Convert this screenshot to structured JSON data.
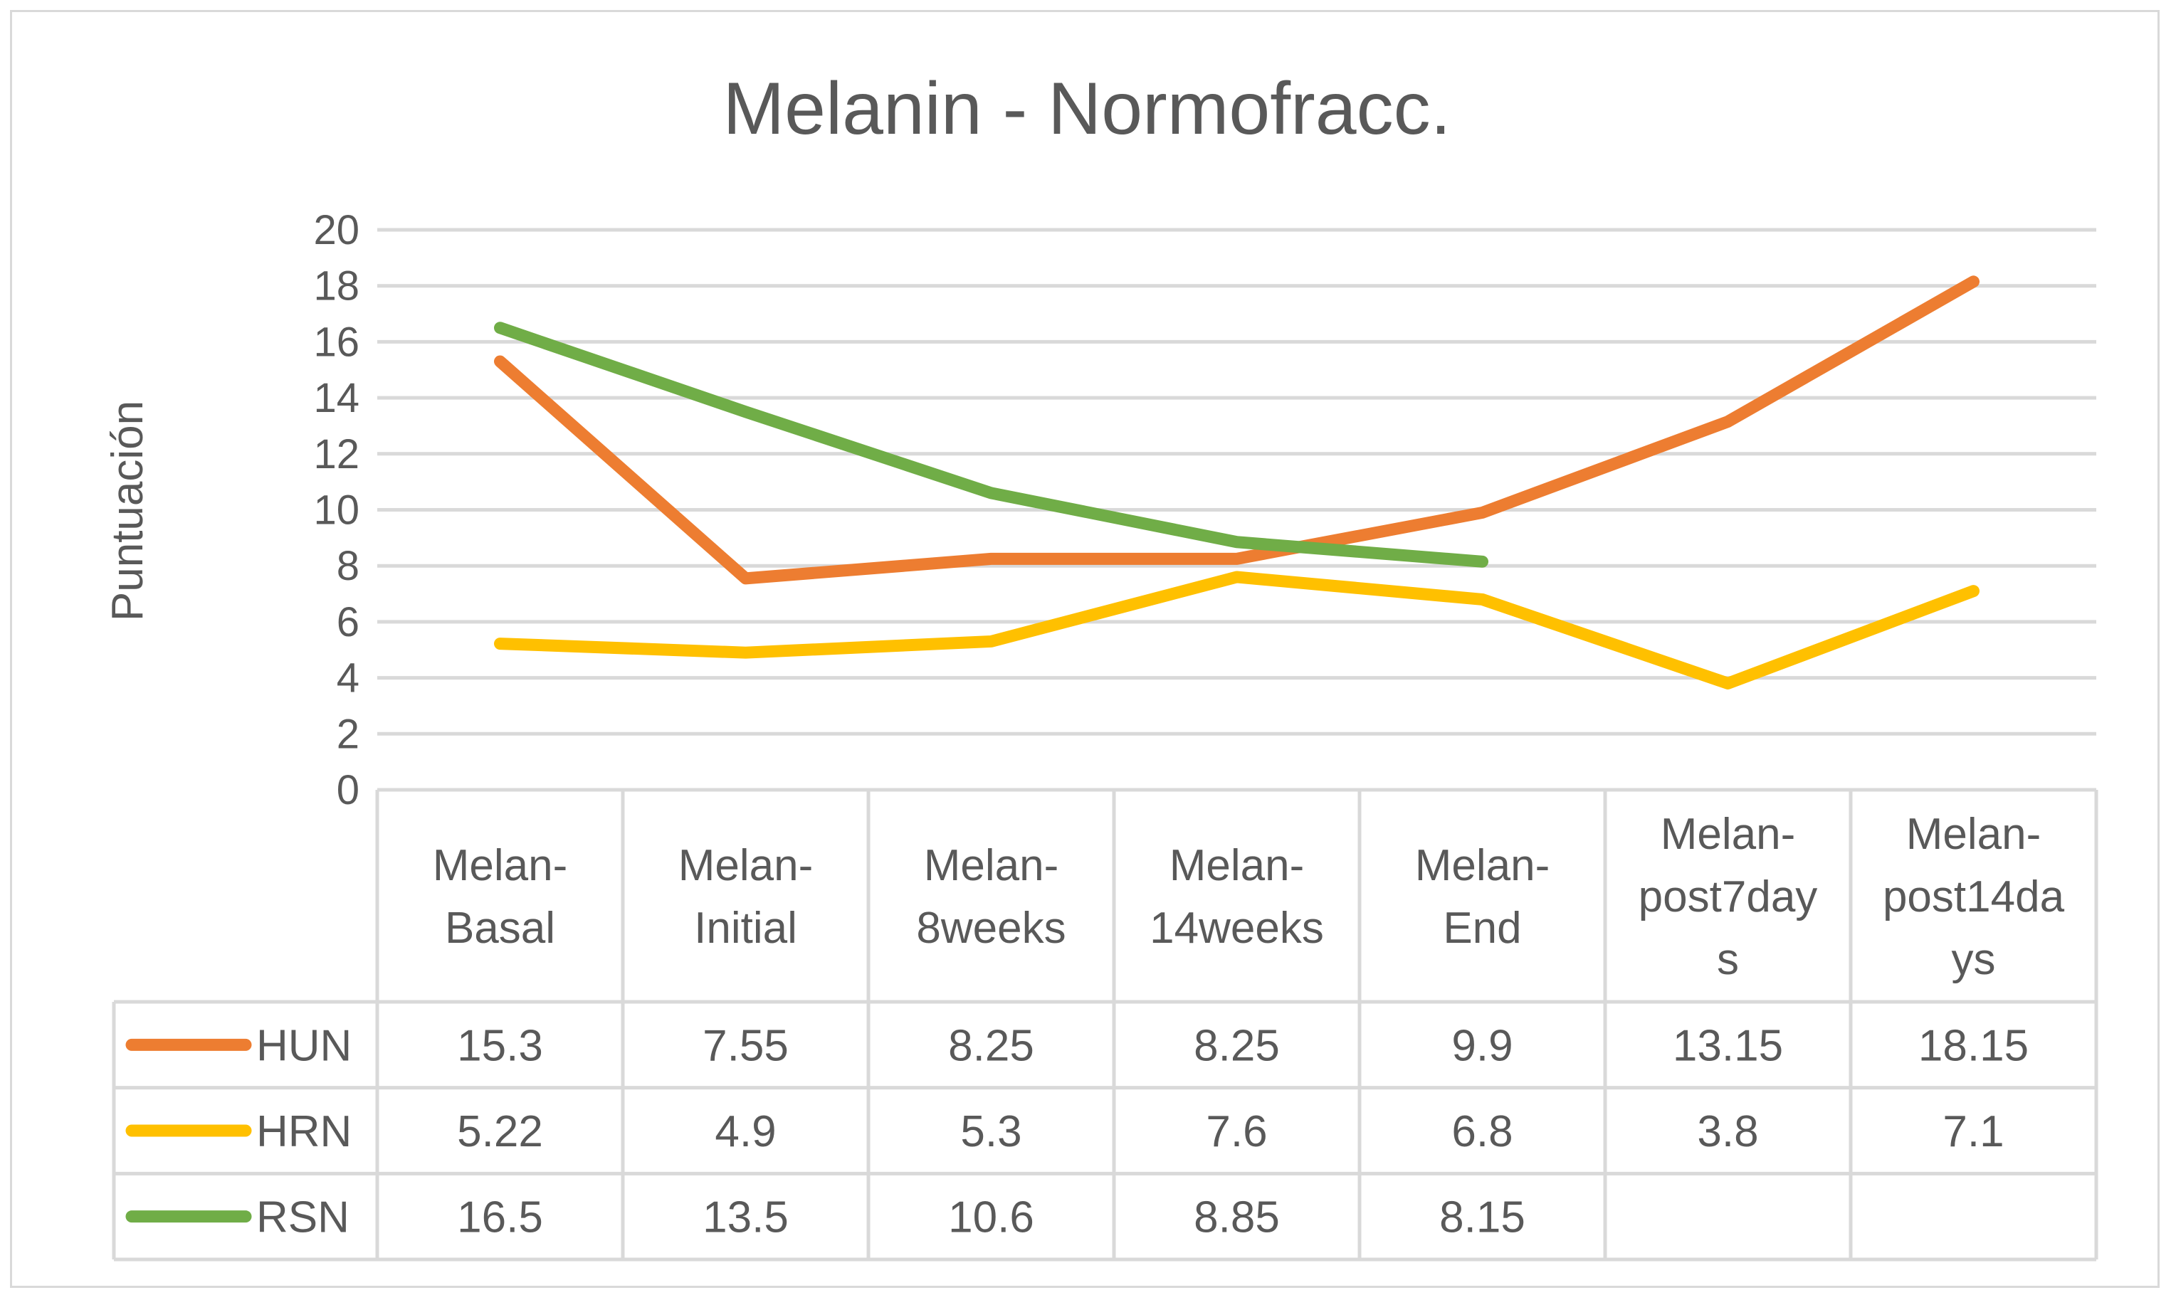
{
  "chart_data": {
    "type": "line",
    "title": "Melanin - Normofracc.",
    "ylabel": "Puntuación",
    "xlabel": "",
    "ylim": [
      0,
      20
    ],
    "yticks": [
      "0",
      "2",
      "4",
      "6",
      "8",
      "10",
      "12",
      "14",
      "16",
      "18",
      "20"
    ],
    "grid": true,
    "legend": "data-table-left",
    "categories": [
      [
        "Melan-",
        "Basal"
      ],
      [
        "Melan-",
        "Initial"
      ],
      [
        "Melan-",
        "8weeks"
      ],
      [
        "Melan-",
        "14weeks"
      ],
      [
        "Melan-",
        "End"
      ],
      [
        "Melan-",
        "post7day",
        "s"
      ],
      [
        "Melan-",
        "post14da",
        "ys"
      ]
    ],
    "series": [
      {
        "name": "HUN",
        "color": "#ed7d31",
        "values": [
          15.3,
          7.55,
          8.25,
          8.25,
          9.9,
          13.15,
          18.15
        ],
        "labels": [
          "15.3",
          "7.55",
          "8.25",
          "8.25",
          "9.9",
          "13.15",
          "18.15"
        ]
      },
      {
        "name": "HRN",
        "color": "#ffc000",
        "values": [
          5.22,
          4.9,
          5.3,
          7.6,
          6.8,
          3.8,
          7.1
        ],
        "labels": [
          "5.22",
          "4.9",
          "5.3",
          "7.6",
          "6.8",
          "3.8",
          "7.1"
        ]
      },
      {
        "name": "RSN",
        "color": "#70ad47",
        "values": [
          16.5,
          13.5,
          10.6,
          8.85,
          8.15,
          null,
          null
        ],
        "labels": [
          "16.5",
          "13.5",
          "10.6",
          "8.85",
          "8.15",
          "",
          ""
        ]
      }
    ]
  }
}
